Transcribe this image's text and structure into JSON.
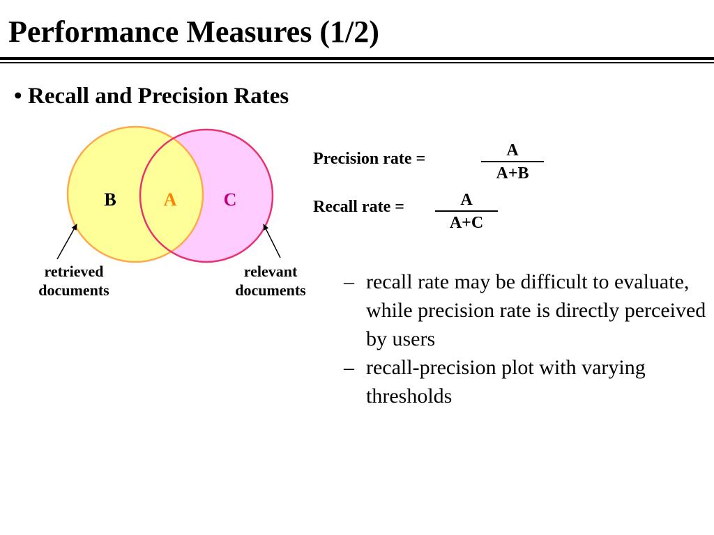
{
  "slide": {
    "title": "Performance Measures (1/2)",
    "bullet": "Recall and Precision Rates",
    "bullet_marker": "•"
  },
  "venn": {
    "left_label": "B",
    "middle_label": "A",
    "right_label": "C",
    "left_callout": [
      "retrieved",
      "documents"
    ],
    "right_callout": [
      "relevant",
      "documents"
    ],
    "colors": {
      "left_fill": "#ffff99",
      "left_stroke": "#ffa94d",
      "right_fill": "#ffccff",
      "right_stroke": "#e8336e",
      "middle_label_color": "#ff8000",
      "right_label_color": "#c00080"
    }
  },
  "formulas": {
    "precision": {
      "label": "Precision rate =",
      "numerator": "A",
      "denominator": "A+B"
    },
    "recall": {
      "label": "Recall rate =",
      "numerator": "A",
      "denominator": "A+C"
    }
  },
  "notes": {
    "marker": "–",
    "items": [
      "recall rate may be difficult to evaluate, while precision rate is directly perceived by users",
      "recall-precision plot with varying thresholds"
    ]
  }
}
